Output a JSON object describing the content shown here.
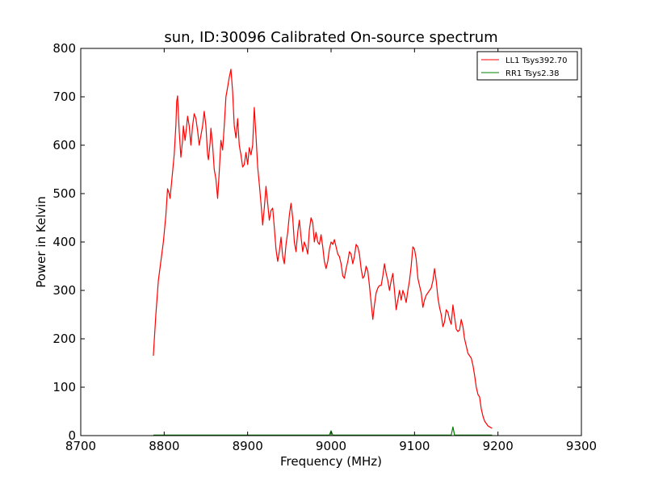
{
  "chart_data": {
    "type": "line",
    "title": "sun, ID:30096 Calibrated On-source spectrum",
    "xlabel": "Frequency (MHz)",
    "ylabel": "Power in Kelvin",
    "xlim": [
      8700,
      9300
    ],
    "ylim": [
      0,
      800
    ],
    "xticks": [
      8700,
      8800,
      8900,
      9000,
      9100,
      9200,
      9300
    ],
    "yticks": [
      0,
      100,
      200,
      300,
      400,
      500,
      600,
      700,
      800
    ],
    "grid": false,
    "legend_position": "top-right",
    "series": [
      {
        "name": "LL1 Tsys392.70",
        "color": "#ff0000",
        "points": [
          [
            8787,
            165
          ],
          [
            8790,
            250
          ],
          [
            8793,
            320
          ],
          [
            8796,
            360
          ],
          [
            8799,
            400
          ],
          [
            8802,
            455
          ],
          [
            8804,
            510
          ],
          [
            8806,
            500
          ],
          [
            8807,
            490
          ],
          [
            8809,
            525
          ],
          [
            8812,
            580
          ],
          [
            8814,
            640
          ],
          [
            8815,
            690
          ],
          [
            8816,
            702
          ],
          [
            8818,
            630
          ],
          [
            8820,
            575
          ],
          [
            8822,
            610
          ],
          [
            8823,
            640
          ],
          [
            8825,
            610
          ],
          [
            8827,
            640
          ],
          [
            8828,
            660
          ],
          [
            8830,
            640
          ],
          [
            8832,
            600
          ],
          [
            8834,
            640
          ],
          [
            8836,
            665
          ],
          [
            8838,
            655
          ],
          [
            8840,
            630
          ],
          [
            8842,
            600
          ],
          [
            8844,
            620
          ],
          [
            8846,
            640
          ],
          [
            8848,
            670
          ],
          [
            8850,
            640
          ],
          [
            8852,
            580
          ],
          [
            8853,
            570
          ],
          [
            8855,
            605
          ],
          [
            8856,
            635
          ],
          [
            8858,
            600
          ],
          [
            8860,
            550
          ],
          [
            8862,
            530
          ],
          [
            8864,
            490
          ],
          [
            8866,
            545
          ],
          [
            8868,
            610
          ],
          [
            8870,
            590
          ],
          [
            8872,
            640
          ],
          [
            8874,
            700
          ],
          [
            8876,
            720
          ],
          [
            8878,
            740
          ],
          [
            8880,
            757
          ],
          [
            8882,
            710
          ],
          [
            8884,
            640
          ],
          [
            8886,
            615
          ],
          [
            8888,
            655
          ],
          [
            8890,
            600
          ],
          [
            8892,
            580
          ],
          [
            8894,
            555
          ],
          [
            8896,
            560
          ],
          [
            8898,
            585
          ],
          [
            8900,
            560
          ],
          [
            8902,
            595
          ],
          [
            8904,
            580
          ],
          [
            8906,
            600
          ],
          [
            8908,
            678
          ],
          [
            8910,
            620
          ],
          [
            8912,
            555
          ],
          [
            8914,
            520
          ],
          [
            8916,
            480
          ],
          [
            8918,
            435
          ],
          [
            8920,
            470
          ],
          [
            8922,
            515
          ],
          [
            8924,
            480
          ],
          [
            8926,
            445
          ],
          [
            8928,
            465
          ],
          [
            8930,
            470
          ],
          [
            8932,
            430
          ],
          [
            8934,
            385
          ],
          [
            8936,
            360
          ],
          [
            8938,
            380
          ],
          [
            8940,
            410
          ],
          [
            8942,
            370
          ],
          [
            8944,
            355
          ],
          [
            8946,
            395
          ],
          [
            8948,
            420
          ],
          [
            8950,
            455
          ],
          [
            8952,
            480
          ],
          [
            8954,
            450
          ],
          [
            8956,
            400
          ],
          [
            8958,
            380
          ],
          [
            8960,
            420
          ],
          [
            8962,
            445
          ],
          [
            8964,
            410
          ],
          [
            8966,
            380
          ],
          [
            8968,
            400
          ],
          [
            8970,
            390
          ],
          [
            8972,
            375
          ],
          [
            8974,
            425
          ],
          [
            8976,
            450
          ],
          [
            8978,
            440
          ],
          [
            8980,
            400
          ],
          [
            8982,
            420
          ],
          [
            8984,
            400
          ],
          [
            8986,
            395
          ],
          [
            8988,
            415
          ],
          [
            8990,
            390
          ],
          [
            8992,
            360
          ],
          [
            8994,
            345
          ],
          [
            8996,
            360
          ],
          [
            8998,
            385
          ],
          [
            9000,
            400
          ],
          [
            9002,
            395
          ],
          [
            9004,
            405
          ],
          [
            9006,
            390
          ],
          [
            9008,
            375
          ],
          [
            9010,
            370
          ],
          [
            9012,
            355
          ],
          [
            9014,
            330
          ],
          [
            9016,
            325
          ],
          [
            9018,
            345
          ],
          [
            9020,
            360
          ],
          [
            9022,
            380
          ],
          [
            9024,
            375
          ],
          [
            9026,
            355
          ],
          [
            9028,
            370
          ],
          [
            9030,
            395
          ],
          [
            9032,
            390
          ],
          [
            9034,
            375
          ],
          [
            9036,
            345
          ],
          [
            9038,
            325
          ],
          [
            9040,
            330
          ],
          [
            9042,
            350
          ],
          [
            9044,
            340
          ],
          [
            9046,
            310
          ],
          [
            9048,
            275
          ],
          [
            9050,
            240
          ],
          [
            9052,
            270
          ],
          [
            9054,
            295
          ],
          [
            9056,
            305
          ],
          [
            9058,
            310
          ],
          [
            9060,
            310
          ],
          [
            9062,
            330
          ],
          [
            9064,
            355
          ],
          [
            9066,
            335
          ],
          [
            9068,
            320
          ],
          [
            9070,
            300
          ],
          [
            9072,
            320
          ],
          [
            9074,
            335
          ],
          [
            9076,
            300
          ],
          [
            9078,
            260
          ],
          [
            9080,
            280
          ],
          [
            9082,
            300
          ],
          [
            9084,
            280
          ],
          [
            9086,
            300
          ],
          [
            9088,
            290
          ],
          [
            9090,
            275
          ],
          [
            9092,
            300
          ],
          [
            9094,
            320
          ],
          [
            9096,
            350
          ],
          [
            9098,
            390
          ],
          [
            9100,
            385
          ],
          [
            9102,
            365
          ],
          [
            9104,
            325
          ],
          [
            9106,
            310
          ],
          [
            9108,
            295
          ],
          [
            9110,
            265
          ],
          [
            9112,
            280
          ],
          [
            9114,
            290
          ],
          [
            9116,
            295
          ],
          [
            9118,
            300
          ],
          [
            9120,
            305
          ],
          [
            9122,
            320
          ],
          [
            9124,
            345
          ],
          [
            9126,
            320
          ],
          [
            9128,
            285
          ],
          [
            9130,
            265
          ],
          [
            9132,
            250
          ],
          [
            9134,
            225
          ],
          [
            9136,
            235
          ],
          [
            9138,
            260
          ],
          [
            9140,
            255
          ],
          [
            9142,
            240
          ],
          [
            9144,
            230
          ],
          [
            9146,
            270
          ],
          [
            9148,
            245
          ],
          [
            9150,
            220
          ],
          [
            9152,
            215
          ],
          [
            9154,
            218
          ],
          [
            9156,
            240
          ],
          [
            9158,
            225
          ],
          [
            9160,
            200
          ],
          [
            9162,
            185
          ],
          [
            9164,
            170
          ],
          [
            9166,
            165
          ],
          [
            9168,
            160
          ],
          [
            9170,
            145
          ],
          [
            9172,
            125
          ],
          [
            9174,
            100
          ],
          [
            9176,
            85
          ],
          [
            9178,
            80
          ],
          [
            9180,
            55
          ],
          [
            9182,
            40
          ],
          [
            9184,
            30
          ],
          [
            9186,
            25
          ],
          [
            9188,
            20
          ],
          [
            9190,
            18
          ],
          [
            9193,
            15
          ]
        ]
      },
      {
        "name": "RR1 Tsys2.38",
        "color": "#008000",
        "points": [
          [
            8787,
            1
          ],
          [
            8900,
            1
          ],
          [
            8960,
            1
          ],
          [
            8998,
            1
          ],
          [
            9000,
            10
          ],
          [
            9002,
            1
          ],
          [
            9100,
            1
          ],
          [
            9144,
            1
          ],
          [
            9146,
            18
          ],
          [
            9148,
            1
          ],
          [
            9193,
            1
          ]
        ]
      }
    ]
  }
}
